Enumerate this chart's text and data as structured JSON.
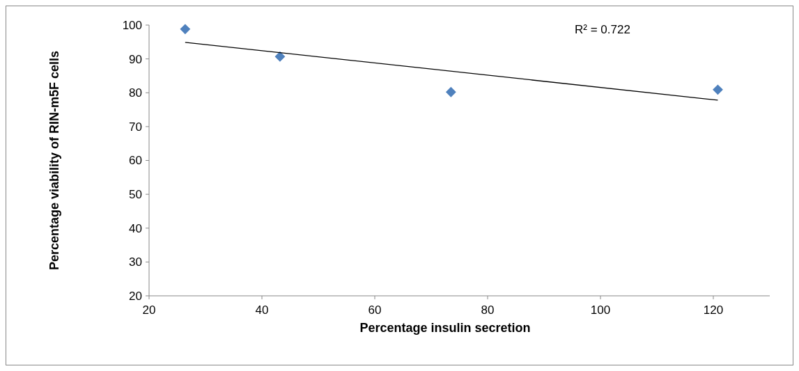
{
  "chart_data": {
    "type": "scatter",
    "xlabel": "Percentage insulin secretion",
    "ylabel": "Percentage viability of RIN-m5F cells",
    "xlim": [
      20,
      130
    ],
    "xticks": [
      20,
      40,
      60,
      80,
      100,
      120
    ],
    "ylim": [
      20,
      100
    ],
    "yticks": [
      20,
      30,
      40,
      50,
      60,
      70,
      80,
      90,
      100
    ],
    "marker": "diamond",
    "grid": false,
    "annotations": [
      "R² = 0.722"
    ],
    "series": [
      {
        "color": "#4f81bd",
        "x": [
          26.4,
          43.2,
          73.5,
          120.8
        ],
        "values": [
          98.8,
          90.7,
          80.2,
          80.9
        ]
      },
      {
        "type": "line",
        "marker": "none",
        "color": "#000000",
        "x": [
          26.4,
          120.8
        ],
        "values": [
          94.9,
          77.8
        ]
      }
    ]
  }
}
